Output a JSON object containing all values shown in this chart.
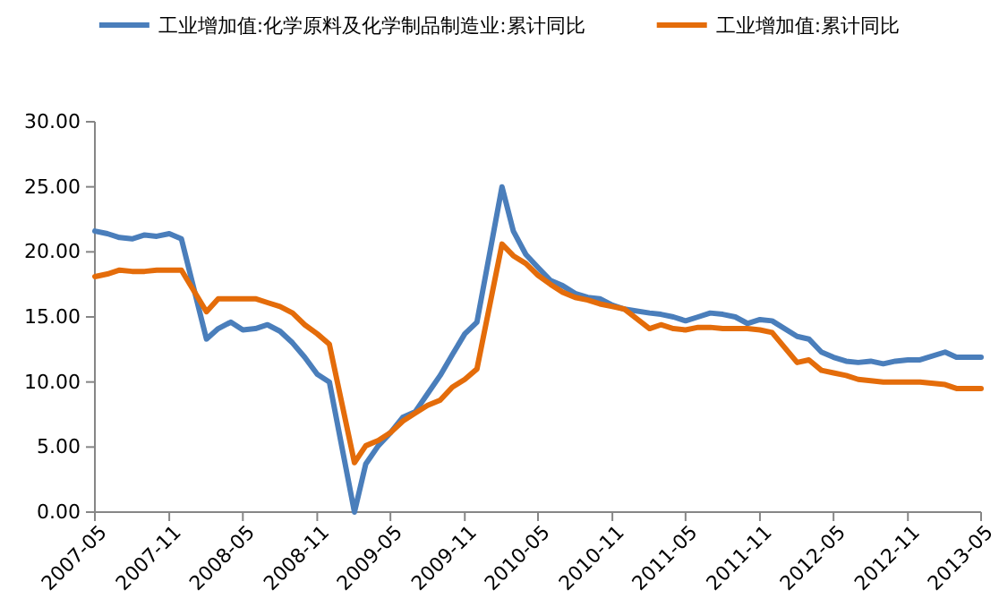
{
  "chart_data": {
    "type": "line",
    "legend": "top",
    "grid": false,
    "marker": "none",
    "line_style": "solid",
    "x": [
      "2007-05",
      "2007-06",
      "2007-07",
      "2007-08",
      "2007-09",
      "2007-10",
      "2007-11",
      "2007-12",
      "2008-02",
      "2008-03",
      "2008-04",
      "2008-05",
      "2008-06",
      "2008-07",
      "2008-08",
      "2008-09",
      "2008-10",
      "2008-11",
      "2008-12",
      "2009-02",
      "2009-03",
      "2009-04",
      "2009-05",
      "2009-06",
      "2009-07",
      "2009-08",
      "2009-09",
      "2009-10",
      "2009-11",
      "2009-12",
      "2010-02",
      "2010-03",
      "2010-04",
      "2010-05",
      "2010-06",
      "2010-07",
      "2010-08",
      "2010-09",
      "2010-10",
      "2010-11",
      "2010-12",
      "2011-02",
      "2011-03",
      "2011-04",
      "2011-05",
      "2011-06",
      "2011-07",
      "2011-08",
      "2011-09",
      "2011-10",
      "2011-11",
      "2011-12",
      "2012-02",
      "2012-03",
      "2012-04",
      "2012-05",
      "2012-06",
      "2012-07",
      "2012-08",
      "2012-09",
      "2012-10",
      "2012-11",
      "2012-12",
      "2013-02",
      "2013-03",
      "2013-04",
      "2013-05"
    ],
    "series": [
      {
        "name": "工业增加值:化学原料及化学制品制造业:累计同比",
        "color": "#4a7ebb",
        "values": [
          21.6,
          21.4,
          21.1,
          21.0,
          21.3,
          21.2,
          21.4,
          21.0,
          13.3,
          14.1,
          14.6,
          14.0,
          14.1,
          14.4,
          13.9,
          13.0,
          11.9,
          10.6,
          10.0,
          0.0,
          3.7,
          5.1,
          6.1,
          7.3,
          7.7,
          9.1,
          10.5,
          12.1,
          13.7,
          14.6,
          25.0,
          21.6,
          19.8,
          18.8,
          17.8,
          17.4,
          16.8,
          16.5,
          16.4,
          15.9,
          15.6,
          15.3,
          15.2,
          15.0,
          14.7,
          15.0,
          15.3,
          15.2,
          15.0,
          14.5,
          14.8,
          14.7,
          13.5,
          13.3,
          12.3,
          11.9,
          11.6,
          11.5,
          11.6,
          11.4,
          11.6,
          11.7,
          11.7,
          12.3,
          11.9,
          11.9,
          11.9
        ]
      },
      {
        "name": "工业增加值:累计同比",
        "color": "#e46c0a",
        "values": [
          18.1,
          18.3,
          18.6,
          18.5,
          18.5,
          18.6,
          18.6,
          18.6,
          15.4,
          16.4,
          16.4,
          16.4,
          16.4,
          16.1,
          15.8,
          15.3,
          14.4,
          13.7,
          12.9,
          3.8,
          5.1,
          5.5,
          6.1,
          7.0,
          7.6,
          8.2,
          8.6,
          9.6,
          10.2,
          11.0,
          20.6,
          19.7,
          19.1,
          18.2,
          17.5,
          16.9,
          16.5,
          16.3,
          16.0,
          15.8,
          15.6,
          14.1,
          14.4,
          14.1,
          14.0,
          14.2,
          14.2,
          14.1,
          14.1,
          14.1,
          14.0,
          13.8,
          11.5,
          11.7,
          10.9,
          10.7,
          10.5,
          10.2,
          10.1,
          10.0,
          10.0,
          10.0,
          10.0,
          9.8,
          9.5,
          9.5,
          9.5
        ]
      }
    ],
    "xlim": [
      "2007-05",
      "2013-05"
    ],
    "xticks": [
      "2007-05",
      "2007-11",
      "2008-05",
      "2008-11",
      "2009-05",
      "2009-11",
      "2010-05",
      "2010-11",
      "2011-05",
      "2011-11",
      "2012-05",
      "2012-11",
      "2013-05"
    ],
    "ylim": [
      0,
      30
    ],
    "yticks": [
      {
        "value": 0,
        "label": "0.00"
      },
      {
        "value": 5,
        "label": "5.00"
      },
      {
        "value": 10,
        "label": "10.00"
      },
      {
        "value": 15,
        "label": "15.00"
      },
      {
        "value": 20,
        "label": "20.00"
      },
      {
        "value": 25,
        "label": "25.00"
      },
      {
        "value": 30,
        "label": "30.00"
      }
    ]
  }
}
